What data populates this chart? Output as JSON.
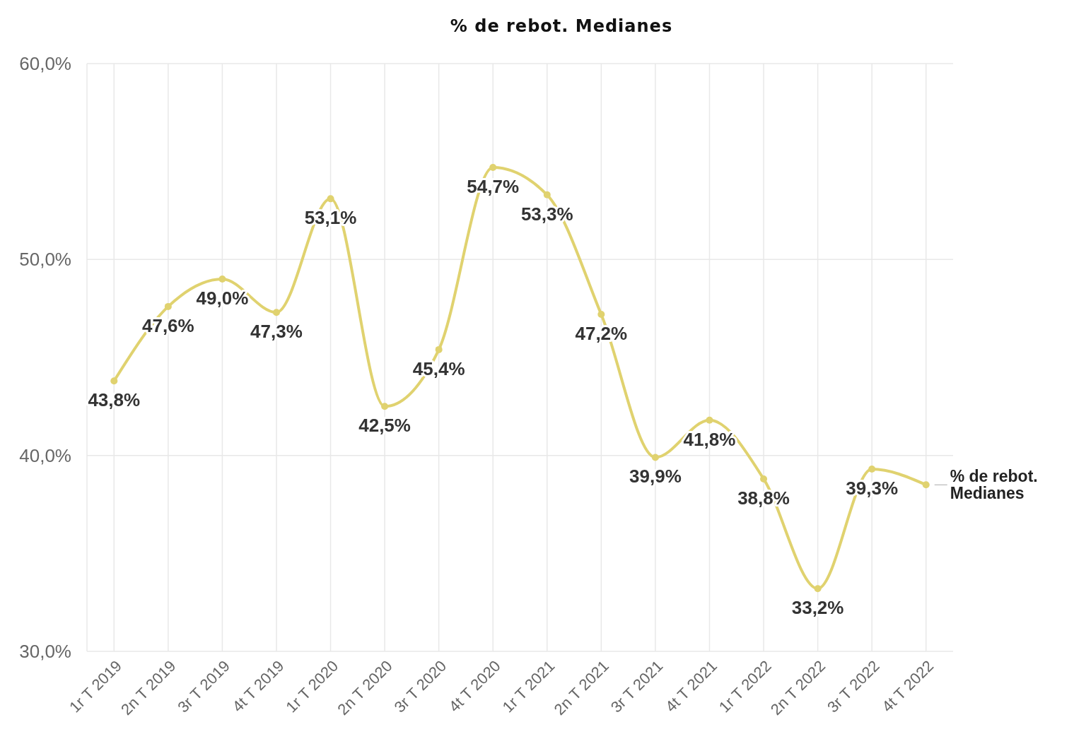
{
  "chart_data": {
    "type": "line",
    "title": "% de rebot. Medianes",
    "categories": [
      "1r T 2019",
      "2n T 2019",
      "3r T 2019",
      "4t T 2019",
      "1r T 2020",
      "2n T 2020",
      "3r T 2020",
      "4t T 2020",
      "1r T 2021",
      "2n T 2021",
      "3r T 2021",
      "4t T 2021",
      "1r T 2022",
      "2n T 2022",
      "3r T 2022",
      "4t T 2022"
    ],
    "series": [
      {
        "name": "% de rebot. Medianes",
        "color": "#e0d26f",
        "values": [
          43.8,
          47.6,
          49.0,
          47.3,
          53.1,
          42.5,
          45.4,
          54.7,
          53.3,
          47.2,
          39.9,
          41.8,
          38.8,
          33.2,
          39.3,
          38.5
        ],
        "value_labels": [
          "43,8%",
          "47,6%",
          "49,0%",
          "47,3%",
          "53,1%",
          "42,5%",
          "45,4%",
          "54,7%",
          "53,3%",
          "47,2%",
          "39,9%",
          "41,8%",
          "38,8%",
          "33,2%",
          "39,3%",
          null
        ]
      }
    ],
    "ylim": [
      30,
      60
    ],
    "yticks": [
      {
        "value": 30,
        "label": "30,0%"
      },
      {
        "value": 40,
        "label": "40,0%"
      },
      {
        "value": 50,
        "label": "50,0%"
      },
      {
        "value": 60,
        "label": "60,0%"
      }
    ],
    "grid": true,
    "marker": "circle",
    "legend": "right"
  }
}
